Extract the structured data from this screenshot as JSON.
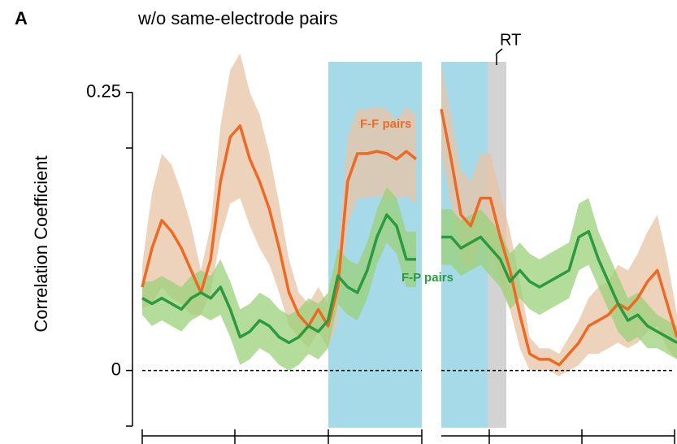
{
  "chart_data": {
    "type": "line",
    "panel_label": "A",
    "title": "w/o same-electrode pairs",
    "ylabel": "Correlation Coefficient",
    "ylim": [
      -0.05,
      0.28
    ],
    "yticks": [
      0,
      0.25
    ],
    "yminorticks": [
      -0.05,
      0.2
    ],
    "annotations": [
      "F-F pairs",
      "F-P pairs",
      "RT"
    ],
    "panels": [
      {
        "series": [
          {
            "name": "F-F pairs",
            "color": "#ee6a24",
            "band_color": "#e8c4a6",
            "values": [
              0.075,
              0.11,
              0.135,
              0.125,
              0.11,
              0.09,
              0.07,
              0.1,
              0.17,
              0.21,
              0.22,
              0.19,
              0.17,
              0.145,
              0.11,
              0.07,
              0.05,
              0.04,
              0.055,
              0.04,
              0.075,
              0.17,
              0.195,
              0.195,
              0.197,
              0.195,
              0.19,
              0.197,
              0.19
            ],
            "errors": [
              0.02,
              0.05,
              0.06,
              0.06,
              0.05,
              0.04,
              0.02,
              0.03,
              0.05,
              0.06,
              0.065,
              0.06,
              0.06,
              0.05,
              0.04,
              0.03,
              0.02,
              0.02,
              0.02,
              0.02,
              0.03,
              0.04,
              0.04,
              0.04,
              0.04,
              0.04,
              0.035,
              0.04,
              0.04
            ]
          },
          {
            "name": "F-P pairs",
            "color": "#2c9a3e",
            "band_color": "#9bd07a",
            "values": [
              0.065,
              0.06,
              0.065,
              0.06,
              0.055,
              0.065,
              0.07,
              0.065,
              0.075,
              0.055,
              0.03,
              0.035,
              0.045,
              0.04,
              0.03,
              0.025,
              0.03,
              0.04,
              0.035,
              0.045,
              0.085,
              0.075,
              0.07,
              0.09,
              0.12,
              0.14,
              0.13,
              0.1,
              0.1
            ],
            "errors": [
              0.015,
              0.02,
              0.02,
              0.02,
              0.02,
              0.02,
              0.02,
              0.02,
              0.025,
              0.025,
              0.025,
              0.025,
              0.025,
              0.025,
              0.025,
              0.025,
              0.025,
              0.025,
              0.025,
              0.025,
              0.025,
              0.025,
              0.025,
              0.025,
              0.025,
              0.025,
              0.025,
              0.025,
              0.025
            ]
          }
        ]
      },
      {
        "series": [
          {
            "name": "F-F pairs",
            "color": "#ee6a24",
            "band_color": "#e8c4a6",
            "values": [
              0.235,
              0.19,
              0.14,
              0.13,
              0.155,
              0.155,
              0.12,
              0.09,
              0.05,
              0.015,
              0.01,
              0.01,
              0.005,
              0.015,
              0.025,
              0.04,
              0.045,
              0.05,
              0.06,
              0.055,
              0.065,
              0.08,
              0.09,
              0.06,
              0.03
            ],
            "errors": [
              0.04,
              0.04,
              0.04,
              0.04,
              0.04,
              0.04,
              0.04,
              0.035,
              0.03,
              0.015,
              0.01,
              0.01,
              0.01,
              0.015,
              0.02,
              0.025,
              0.03,
              0.03,
              0.035,
              0.035,
              0.04,
              0.045,
              0.05,
              0.04,
              0.02
            ]
          },
          {
            "name": "F-P pairs",
            "color": "#2c9a3e",
            "band_color": "#9bd07a",
            "values": [
              0.12,
              0.12,
              0.11,
              0.115,
              0.12,
              0.11,
              0.1,
              0.08,
              0.09,
              0.08,
              0.075,
              0.08,
              0.085,
              0.09,
              0.12,
              0.125,
              0.1,
              0.08,
              0.06,
              0.045,
              0.05,
              0.04,
              0.035,
              0.03,
              0.025
            ],
            "errors": [
              0.025,
              0.025,
              0.025,
              0.025,
              0.025,
              0.025,
              0.025,
              0.025,
              0.025,
              0.025,
              0.025,
              0.025,
              0.025,
              0.025,
              0.03,
              0.03,
              0.025,
              0.025,
              0.025,
              0.02,
              0.02,
              0.02,
              0.015,
              0.015,
              0.015
            ]
          }
        ]
      }
    ]
  }
}
